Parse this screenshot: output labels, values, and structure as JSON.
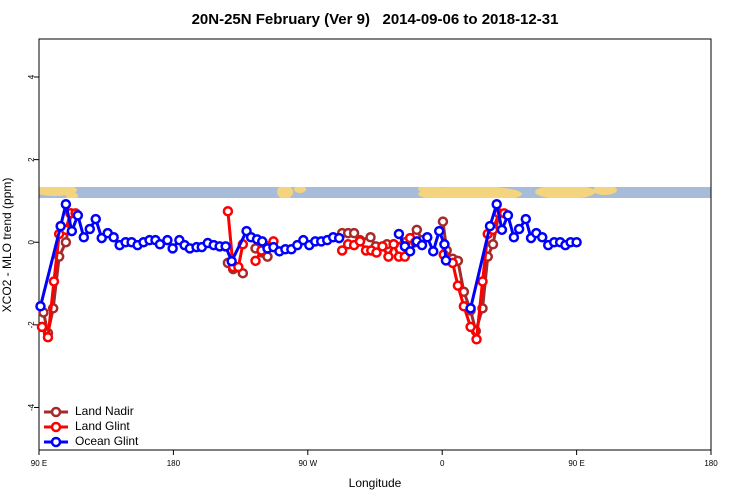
{
  "chart_data": {
    "type": "line",
    "title": "20N-25N February (Ver 9)   2014-09-06 to 2018-12-31",
    "x_label": "Longitude",
    "y_label": "XCO2 - MLO trend (ppm)",
    "xlim": [
      90,
      540
    ],
    "ylim": [
      -5.03,
      4.92
    ],
    "xticks": [
      {
        "value": 90,
        "label": "90 E"
      },
      {
        "value": 180,
        "label": "180"
      },
      {
        "value": 270,
        "label": "90 W"
      },
      {
        "value": 360,
        "label": "0"
      },
      {
        "value": 450,
        "label": "90 E"
      },
      {
        "value": 540,
        "label": "180"
      }
    ],
    "yticks": [
      -4,
      -2,
      0,
      2,
      4
    ],
    "legend": "bottom-left",
    "series": [
      {
        "name": "Land Nadir",
        "color": "#a52a2a",
        "x": [
          93,
          96,
          99.5,
          103.5,
          108,
          111.5,
          214,
          216.5,
          220,
          226.5,
          231,
          235,
          239.5,
          243,
          270,
          293,
          297,
          301,
          305,
          312,
          315.5,
          323,
          327.5,
          335,
          343,
          346.5,
          355,
          360.5,
          363,
          367,
          370.5,
          374.5,
          379,
          382.5,
          387,
          390.5,
          394,
          398
        ],
        "values": [
          -1.7,
          -2.2,
          -1.6,
          -0.35,
          0,
          0.7,
          null,
          -0.5,
          -0.65,
          -0.75,
          null,
          -0.15,
          -0.25,
          -0.35,
          null,
          0.22,
          0.22,
          0.22,
          0.05,
          0.12,
          -0.1,
          -0.05,
          -0.05,
          0,
          0.3,
          0.05,
          null,
          0.5,
          -0.2,
          -0.4,
          -0.45,
          -1.2,
          -1.65,
          -2.15,
          -1.6,
          -0.35,
          -0.05,
          0.7
        ]
      },
      {
        "name": "Land Glint",
        "color": "#ff0000",
        "x": [
          92,
          96,
          100,
          103.5,
          108,
          111,
          114.5,
          200,
          216.5,
          220,
          223.5,
          226.5,
          231,
          235,
          239,
          243,
          247,
          270,
          293,
          297,
          301,
          305,
          309,
          312.5,
          316,
          320,
          324,
          327.5,
          331,
          335,
          338.5,
          342,
          352,
          361,
          367,
          370.5,
          374.5,
          379,
          383,
          387,
          390.5,
          394,
          398,
          401.5
        ],
        "values": [
          -2.05,
          -2.3,
          -0.95,
          0.2,
          0.3,
          0.7,
          0.7,
          null,
          0.75,
          -0.6,
          -0.6,
          -0.05,
          null,
          -0.45,
          -0.2,
          -0.1,
          0.02,
          null,
          -0.2,
          -0.05,
          -0.07,
          0.02,
          -0.2,
          -0.2,
          -0.25,
          -0.1,
          -0.35,
          -0.05,
          -0.35,
          -0.35,
          0.1,
          0,
          null,
          -0.3,
          -0.5,
          -1.05,
          -1.55,
          -2.05,
          -2.35,
          -0.95,
          0.2,
          0.3,
          0.7,
          0.7
        ]
      },
      {
        "name": "Ocean Glint",
        "color": "#0000ff",
        "x": [
          91,
          104.5,
          108,
          112,
          116,
          120,
          124,
          128,
          132,
          136,
          140,
          144,
          148,
          152,
          156,
          160,
          164,
          168,
          171,
          176,
          179.5,
          184,
          187.5,
          191,
          195.5,
          199,
          203,
          207,
          211,
          215,
          219,
          229,
          232,
          236,
          239.5,
          243,
          247,
          251,
          255,
          259,
          263,
          267,
          271,
          275,
          279,
          283,
          287,
          291,
          310,
          331,
          335,
          338.5,
          343,
          346.5,
          350,
          354,
          358,
          361.5,
          362.5,
          370,
          379,
          392,
          396.5,
          400,
          404,
          408,
          411.5,
          416,
          419.5,
          423,
          427,
          431,
          435,
          439,
          442.5,
          446,
          450
        ],
        "values": [
          -1.55,
          0.39,
          0.92,
          0.27,
          0.65,
          0.12,
          0.32,
          0.56,
          0.1,
          0.22,
          0.12,
          -0.07,
          0,
          0,
          -0.07,
          0,
          0.05,
          0.05,
          -0.05,
          0.05,
          -0.15,
          0.05,
          -0.07,
          -0.15,
          -0.12,
          -0.12,
          -0.02,
          -0.07,
          -0.1,
          -0.1,
          -0.46,
          0.27,
          0.12,
          0.07,
          0.02,
          -0.15,
          -0.12,
          -0.22,
          -0.17,
          -0.17,
          -0.07,
          0.05,
          -0.07,
          0.02,
          0.02,
          0.05,
          0.12,
          0.1,
          null,
          0.2,
          -0.1,
          -0.22,
          0.02,
          -0.07,
          0.12,
          -0.22,
          0.27,
          -0.05,
          -0.44,
          null,
          -1.6,
          0.39,
          0.92,
          0.3,
          0.65,
          0.12,
          0.32,
          0.56,
          0.1,
          0.22,
          0.12,
          -0.07,
          0,
          0,
          -0.07,
          0,
          0
        ]
      }
    ]
  }
}
